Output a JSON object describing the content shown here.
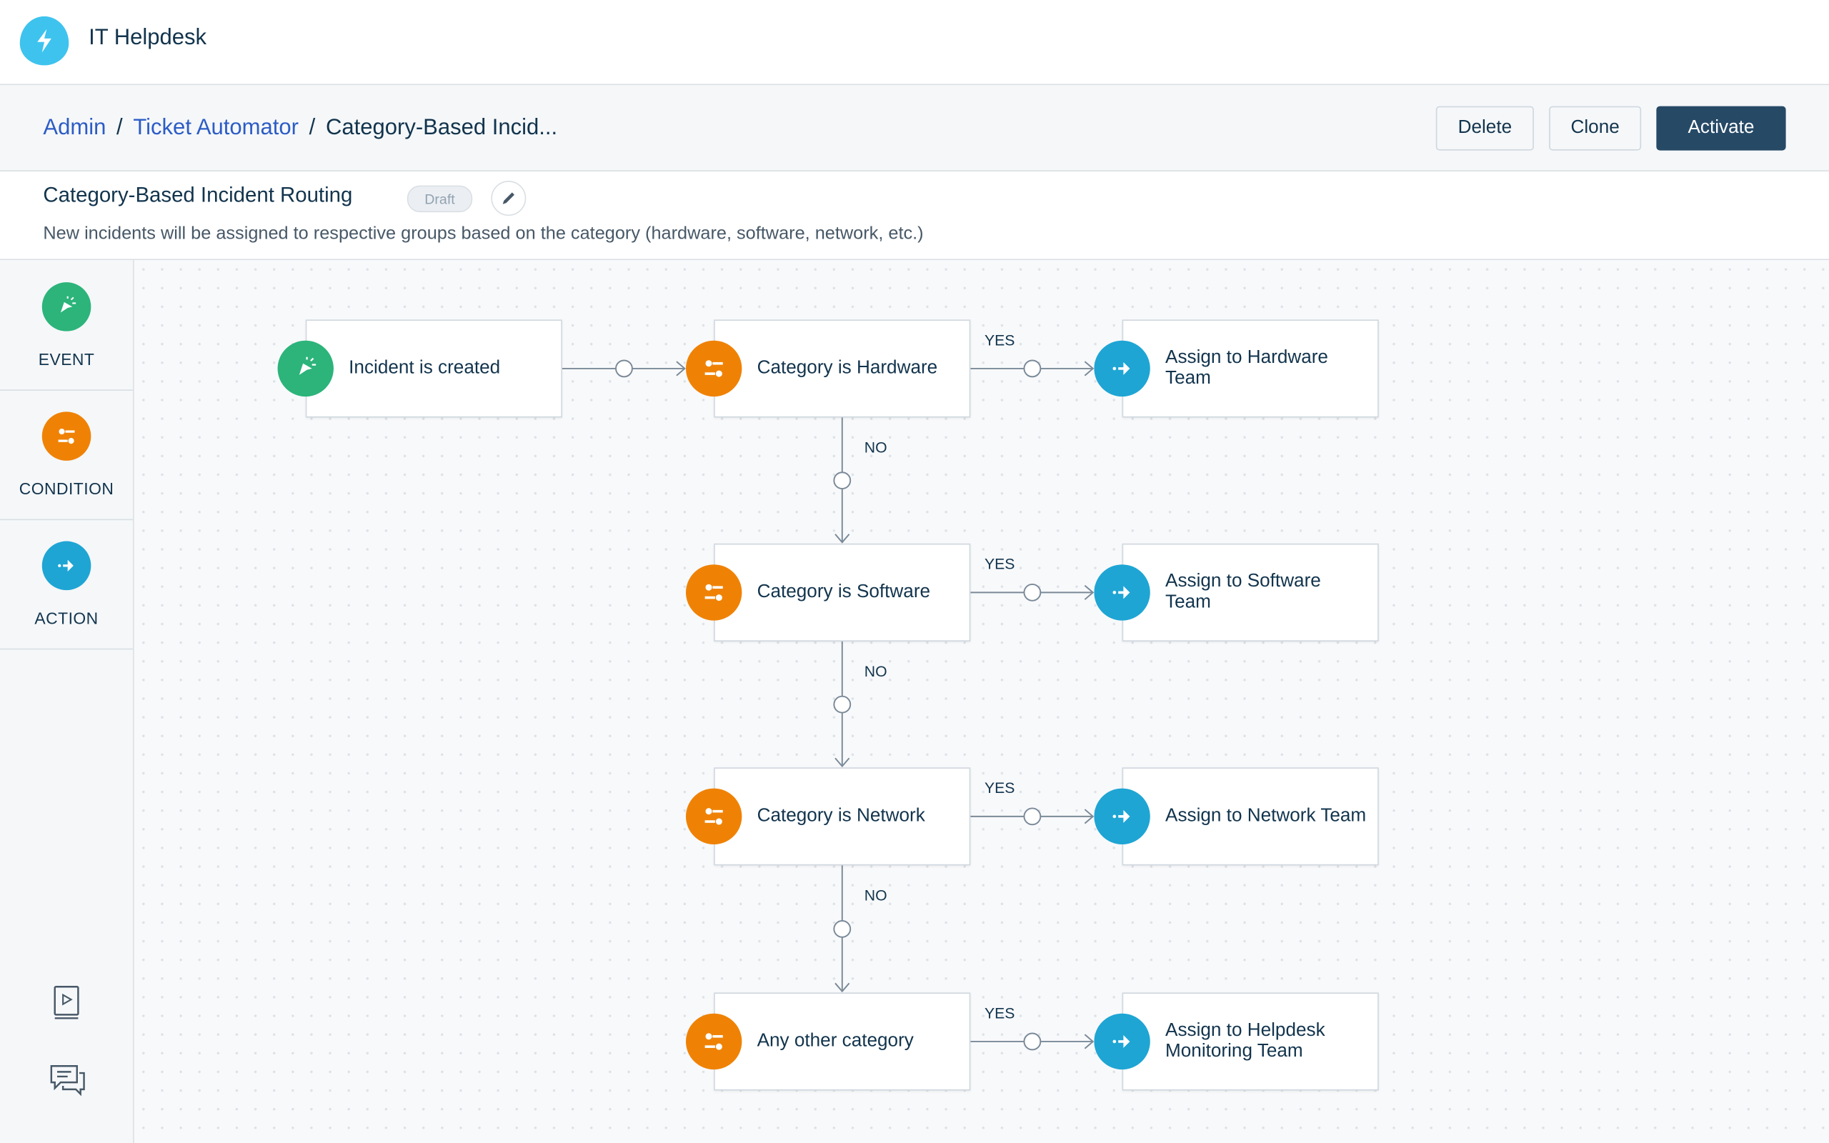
{
  "app": {
    "title": "IT Helpdesk",
    "logo_icon": "lightning-icon",
    "logo_color": "#3ec3ee"
  },
  "breadcrumb": {
    "items": [
      "Admin",
      "Ticket Automator"
    ],
    "current": "Category-Based Incid..."
  },
  "toolbar": {
    "delete_label": "Delete",
    "clone_label": "Clone",
    "activate_label": "Activate"
  },
  "rule": {
    "title": "Category-Based Incident Routing",
    "status": "Draft",
    "description": "New incidents will be assigned to respective groups based on the category (hardware, software, network, etc.)"
  },
  "palette": {
    "items": [
      {
        "label": "EVENT",
        "icon": "cursor-click-icon",
        "color": "#2cb47a"
      },
      {
        "label": "CONDITION",
        "icon": "sliders-icon",
        "color": "#ef8205"
      },
      {
        "label": "ACTION",
        "icon": "arrow-right-icon",
        "color": "#1ea5d4"
      }
    ],
    "bottom_icons": [
      "video-guide-icon",
      "chat-icon"
    ]
  },
  "flow": {
    "event": {
      "label": "Incident is created"
    },
    "yes_label": "YES",
    "no_label": "NO",
    "rows": [
      {
        "condition": "Category is Hardware",
        "action": "Assign to Hardware Team"
      },
      {
        "condition": "Category is Software",
        "action": "Assign to Software Team"
      },
      {
        "condition": "Category is Network",
        "action": "Assign to Network Team"
      },
      {
        "condition": "Any other category",
        "action": "Assign to Helpdesk Monitoring Team"
      }
    ]
  }
}
